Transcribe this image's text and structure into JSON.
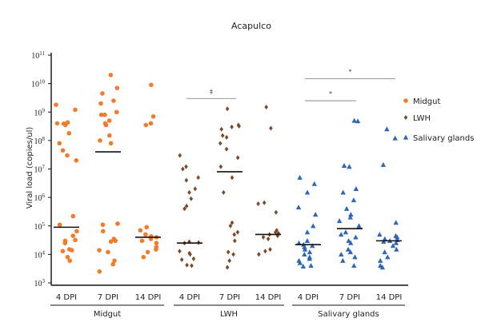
{
  "chart_data": {
    "type": "scatter",
    "title": "Acapulco",
    "ylabel": "Viral load (copies/ul)",
    "yscale": "log",
    "ylim": [
      1000,
      100000000000
    ],
    "ytick_exponents": [
      3,
      4,
      5,
      6,
      7,
      8,
      9,
      10,
      11
    ],
    "ytick_base": "10",
    "categories": [
      "4 DPI",
      "7 DPI",
      "14 DPI",
      "4 DPI",
      "7 DPI",
      "14 DPI",
      "4 DPI",
      "7 DPI",
      "14 DPI"
    ],
    "groups": [
      {
        "label": "Midgut",
        "categories": [
          0,
          1,
          2
        ]
      },
      {
        "label": "LWH",
        "categories": [
          3,
          4,
          5
        ]
      },
      {
        "label": "Salivary glands",
        "categories": [
          6,
          7,
          8
        ]
      }
    ],
    "series": [
      {
        "name": "Midgut",
        "color": "#f37b2a",
        "marker": "circle",
        "points": [
          [
            0,
            1800000000.0
          ],
          [
            0,
            1200000000.0
          ],
          [
            0,
            400000000.0
          ],
          [
            0,
            430000000.0
          ],
          [
            0,
            390000000.0
          ],
          [
            0,
            350000000.0
          ],
          [
            0,
            180000000.0
          ],
          [
            0,
            80000000.0
          ],
          [
            0,
            45000000.0
          ],
          [
            0,
            30000000.0
          ],
          [
            0,
            20000000.0
          ],
          [
            0,
            220000.0
          ],
          [
            0,
            110000.0
          ],
          [
            0,
            65000.0
          ],
          [
            0,
            45000.0
          ],
          [
            0,
            30000.0
          ],
          [
            0,
            32000.0
          ],
          [
            0,
            25000.0
          ],
          [
            0,
            15000.0
          ],
          [
            0,
            13000.0
          ],
          [
            0,
            14000.0
          ],
          [
            0,
            8000.0
          ],
          [
            0,
            6000.0
          ],
          [
            1,
            20000000000.0
          ],
          [
            1,
            7000000000.0
          ],
          [
            1,
            4500000000.0
          ],
          [
            1,
            2500000000.0
          ],
          [
            1,
            2000000000.0
          ],
          [
            1,
            1000000000.0
          ],
          [
            1,
            800000000.0
          ],
          [
            1,
            800000000.0
          ],
          [
            1,
            500000000.0
          ],
          [
            1,
            400000000.0
          ],
          [
            1,
            350000000.0
          ],
          [
            1,
            150000000.0
          ],
          [
            1,
            100000000.0
          ],
          [
            1,
            80000000.0
          ],
          [
            1,
            120000.0
          ],
          [
            1,
            110000.0
          ],
          [
            1,
            65000.0
          ],
          [
            1,
            35000.0
          ],
          [
            1,
            30000.0
          ],
          [
            1,
            28000.0
          ],
          [
            1,
            14000.0
          ],
          [
            1,
            12000.0
          ],
          [
            1,
            6000.0
          ],
          [
            1,
            4500.0
          ],
          [
            1,
            2500.0
          ],
          [
            2,
            9000000000.0
          ],
          [
            2,
            700000000.0
          ],
          [
            2,
            400000000.0
          ],
          [
            2,
            350000000.0
          ],
          [
            2,
            90000.0
          ],
          [
            2,
            70000.0
          ],
          [
            2,
            50000.0
          ],
          [
            2,
            43000.0
          ],
          [
            2,
            40000.0
          ],
          [
            2,
            35000.0
          ],
          [
            2,
            30000.0
          ],
          [
            2,
            25000.0
          ],
          [
            2,
            18000.0
          ],
          [
            2,
            15000.0
          ],
          [
            2,
            12000.0
          ],
          [
            2,
            8000.0
          ]
        ],
        "medians": [
          [
            0,
            90000.0
          ],
          [
            1,
            40000000.0
          ],
          [
            2,
            40000.0
          ]
        ]
      },
      {
        "name": "LWH",
        "color": "#7b4a2a",
        "marker": "diamond",
        "points": [
          [
            3,
            30000000.0
          ],
          [
            3,
            12000000.0
          ],
          [
            3,
            10000000.0
          ],
          [
            3,
            5000000.0
          ],
          [
            3,
            4000000.0
          ],
          [
            3,
            2000000.0
          ],
          [
            3,
            1500000.0
          ],
          [
            3,
            900000.0
          ],
          [
            3,
            500000.0
          ],
          [
            3,
            400000.0
          ],
          [
            3,
            28000.0
          ],
          [
            3,
            25000.0
          ],
          [
            3,
            26000.0
          ],
          [
            3,
            13000.0
          ],
          [
            3,
            10000.0
          ],
          [
            3,
            11000.0
          ],
          [
            3,
            7000.0
          ],
          [
            3,
            6500.0
          ],
          [
            3,
            4000.0
          ],
          [
            3,
            4200.0
          ],
          [
            4,
            1300000000.0
          ],
          [
            4,
            350000000.0
          ],
          [
            4,
            320000000.0
          ],
          [
            4,
            300000000.0
          ],
          [
            4,
            250000000.0
          ],
          [
            4,
            150000000.0
          ],
          [
            4,
            130000000.0
          ],
          [
            4,
            80000000.0
          ],
          [
            4,
            50000000.0
          ],
          [
            4,
            25000000.0
          ],
          [
            4,
            12000000.0
          ],
          [
            4,
            5000000.0
          ],
          [
            4,
            1500000.0
          ],
          [
            4,
            130000.0
          ],
          [
            4,
            100000.0
          ],
          [
            4,
            60000.0
          ],
          [
            4,
            50000.0
          ],
          [
            4,
            30000.0
          ],
          [
            4,
            12000.0
          ],
          [
            4,
            10000.0
          ],
          [
            4,
            6000.0
          ],
          [
            4,
            3500.0
          ],
          [
            5,
            1500000000.0
          ],
          [
            5,
            270000000.0
          ],
          [
            5,
            650000.0
          ],
          [
            5,
            600000.0
          ],
          [
            5,
            300000.0
          ],
          [
            5,
            70000.0
          ],
          [
            5,
            60000.0
          ],
          [
            5,
            50000.0
          ],
          [
            5,
            55000.0
          ],
          [
            5,
            45000.0
          ],
          [
            5,
            40000.0
          ],
          [
            5,
            35000.0
          ],
          [
            5,
            15000.0
          ],
          [
            5,
            13000.0
          ],
          [
            5,
            10000.0
          ]
        ],
        "medians": [
          [
            3,
            25000.0
          ],
          [
            4,
            8000000.0
          ],
          [
            5,
            50000.0
          ]
        ]
      },
      {
        "name": "Salivary glands",
        "color": "#2e66b8",
        "marker": "triangle",
        "points": [
          [
            6,
            5000000.0
          ],
          [
            6,
            3000000.0
          ],
          [
            6,
            1500000.0
          ],
          [
            6,
            450000.0
          ],
          [
            6,
            250000.0
          ],
          [
            6,
            100000.0
          ],
          [
            6,
            60000.0
          ],
          [
            6,
            30000.0
          ],
          [
            6,
            25000.0
          ],
          [
            6,
            22000.0
          ],
          [
            6,
            20000.0
          ],
          [
            6,
            18000.0
          ],
          [
            6,
            15000.0
          ],
          [
            6,
            12000.0
          ],
          [
            6,
            10000.0
          ],
          [
            6,
            8000.0
          ],
          [
            6,
            7000.0
          ],
          [
            6,
            6000.0
          ],
          [
            6,
            5000.0
          ],
          [
            6,
            4000.0
          ],
          [
            6,
            3800.0
          ],
          [
            7,
            500000000.0
          ],
          [
            7,
            480000000.0
          ],
          [
            7,
            13000000.0
          ],
          [
            7,
            12000000.0
          ],
          [
            7,
            2000000.0
          ],
          [
            7,
            1500000.0
          ],
          [
            7,
            800000.0
          ],
          [
            7,
            400000.0
          ],
          [
            7,
            250000.0
          ],
          [
            7,
            200000.0
          ],
          [
            7,
            150000.0
          ],
          [
            7,
            100000.0
          ],
          [
            7,
            60000.0
          ],
          [
            7,
            50000.0
          ],
          [
            7,
            40000.0
          ],
          [
            7,
            30000.0
          ],
          [
            7,
            25000.0
          ],
          [
            7,
            15000.0
          ],
          [
            7,
            12000.0
          ],
          [
            7,
            10000.0
          ],
          [
            7,
            8000.0
          ],
          [
            7,
            6000.0
          ],
          [
            7,
            4000.0
          ],
          [
            8,
            250000000.0
          ],
          [
            8,
            120000000.0
          ],
          [
            8,
            14000000.0
          ],
          [
            8,
            130000.0
          ],
          [
            8,
            50000.0
          ],
          [
            8,
            45000.0
          ],
          [
            8,
            40000.0
          ],
          [
            8,
            35000.0
          ],
          [
            8,
            32000.0
          ],
          [
            8,
            30000.0
          ],
          [
            8,
            28000.0
          ],
          [
            8,
            25000.0
          ],
          [
            8,
            20000.0
          ],
          [
            8,
            15000.0
          ],
          [
            8,
            12000.0
          ],
          [
            8,
            8000.0
          ],
          [
            8,
            6000.0
          ],
          [
            8,
            4000.0
          ],
          [
            8,
            3500.0
          ]
        ],
        "medians": [
          [
            6,
            22000.0
          ],
          [
            7,
            80000.0
          ],
          [
            8,
            30000.0
          ]
        ]
      }
    ],
    "annotations": [
      {
        "text": "‡",
        "from": 3,
        "to": 4,
        "y": 3000000000.0
      },
      {
        "text": "*",
        "from": 6,
        "to": 8,
        "y": 15000000000.0
      },
      {
        "text": "*",
        "from": 6,
        "to": 7,
        "y": 2500000000.0
      }
    ],
    "legend": {
      "position": "right",
      "entries": [
        "Midgut",
        "LWH",
        "Salivary glands"
      ]
    }
  }
}
